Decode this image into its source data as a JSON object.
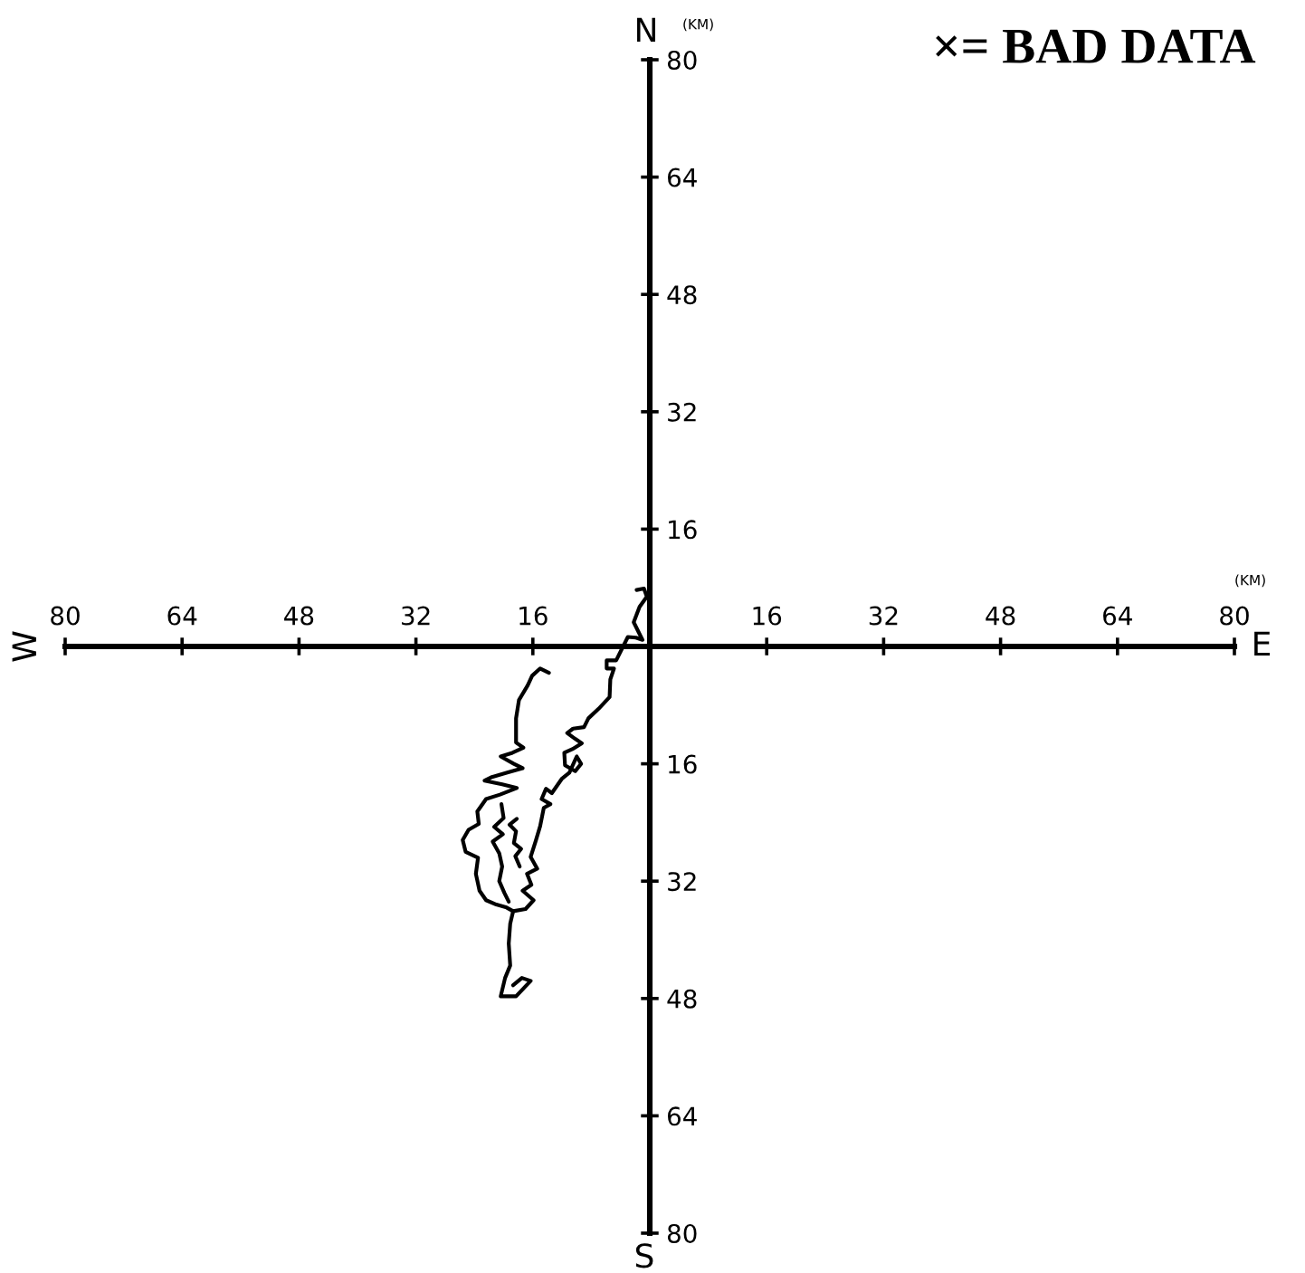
{
  "chart_data": {
    "type": "line",
    "xlim": [
      -80,
      80
    ],
    "ylim": [
      -80,
      80
    ],
    "xticks": [
      {
        "value": -80,
        "label": "80"
      },
      {
        "value": -64,
        "label": "64"
      },
      {
        "value": -48,
        "label": "48"
      },
      {
        "value": -32,
        "label": "32"
      },
      {
        "value": -16,
        "label": "16"
      },
      16,
      32,
      48,
      64,
      80
    ],
    "yticks": [
      {
        "value": -80,
        "label": "80"
      },
      {
        "value": -64,
        "label": "64"
      },
      {
        "value": -48,
        "label": "48"
      },
      {
        "value": -32,
        "label": "32"
      },
      {
        "value": -16,
        "label": "16"
      },
      16,
      32,
      48,
      64,
      80
    ],
    "annotations": [
      "N",
      "S",
      "W",
      "E",
      "(KM)",
      "(KM)",
      "×= BAD DATA"
    ],
    "series": [
      {
        "color": "#000000",
        "x": [
          -1.8,
          -0.8,
          -0.4,
          -1.4,
          -2.2,
          -1.0,
          -1.9,
          -3.0,
          -4.6,
          -5.9,
          -5.9,
          -4.9,
          -5.4,
          -5.5,
          -7.0,
          -8.4,
          -9.0,
          -10.5,
          -11.3,
          -10.2,
          -9.3,
          -10.6,
          -11.7,
          -11.6,
          -10.2,
          -9.4,
          -10.0,
          -11.0,
          -12.0,
          -13.4,
          -14.2,
          -14.8,
          -13.6,
          -14.5,
          -15.0,
          -15.6,
          -16.3,
          -15.4,
          -16.8,
          -16.2,
          -17.4,
          -15.9,
          -17.0,
          -18.7,
          -19.1,
          -19.3,
          -19.1,
          -19.8,
          -20.4,
          -18.3,
          -16.3,
          -17.5,
          -18.7
        ],
        "values": [
          7.7,
          7.9,
          6.8,
          5.4,
          3.3,
          0.9,
          1.2,
          1.3,
          -1.9,
          -1.9,
          -3.0,
          -3.0,
          -4.5,
          -6.9,
          -8.5,
          -9.8,
          -11.0,
          -11.2,
          -11.8,
          -12.6,
          -13.2,
          -14.0,
          -14.5,
          -16.2,
          -17.0,
          -16.0,
          -15.0,
          -17.2,
          -18.0,
          -20.0,
          -19.4,
          -20.8,
          -21.5,
          -22.0,
          -24.5,
          -26.5,
          -28.7,
          -30.3,
          -31.0,
          -32.5,
          -33.3,
          -34.6,
          -35.8,
          -36.1,
          -37.8,
          -40.5,
          -43.5,
          -45.2,
          -47.7,
          -47.7,
          -45.6,
          -45.2,
          -46.2
        ]
      },
      {
        "color": "#000000",
        "x": [
          -13.8,
          -15.0,
          -16.1,
          -16.7,
          -17.9,
          -18.3,
          -18.3,
          -17.3,
          -18.8,
          -20.4,
          -18.6,
          -17.4,
          -19.5,
          -21.6,
          -22.6,
          -20.2,
          -18.2,
          -20.5,
          -22.4,
          -23.6,
          -23.4,
          -24.8,
          -25.6,
          -25.2,
          -23.5,
          -23.8,
          -23.3,
          -22.4,
          -21.0,
          -19.6,
          -18.7
        ],
        "values": [
          -3.6,
          -3.0,
          -4.0,
          -5.3,
          -7.3,
          -9.8,
          -13.1,
          -13.8,
          -14.5,
          -15.0,
          -16.0,
          -16.6,
          -17.2,
          -17.8,
          -18.3,
          -18.8,
          -19.3,
          -20.2,
          -20.8,
          -22.5,
          -24.2,
          -25.0,
          -26.4,
          -28.0,
          -28.8,
          -31.0,
          -33.3,
          -34.6,
          -35.2,
          -35.6,
          -36.1
        ]
      },
      {
        "color": "#000000",
        "x": [
          -20.3,
          -20.0,
          -21.3,
          -20.1,
          -21.5,
          -20.6,
          -20.2,
          -20.6,
          -19.9,
          -19.3
        ],
        "values": [
          -21.5,
          -23.4,
          -24.6,
          -25.6,
          -26.6,
          -28.2,
          -30.0,
          -32.0,
          -33.6,
          -34.8
        ]
      },
      {
        "color": "#000000",
        "x": [
          -18.2,
          -19.2,
          -18.3,
          -18.6,
          -17.6,
          -18.4,
          -17.8
        ],
        "values": [
          -23.5,
          -24.3,
          -25.2,
          -26.8,
          -27.6,
          -28.6,
          -30.0
        ]
      }
    ]
  }
}
